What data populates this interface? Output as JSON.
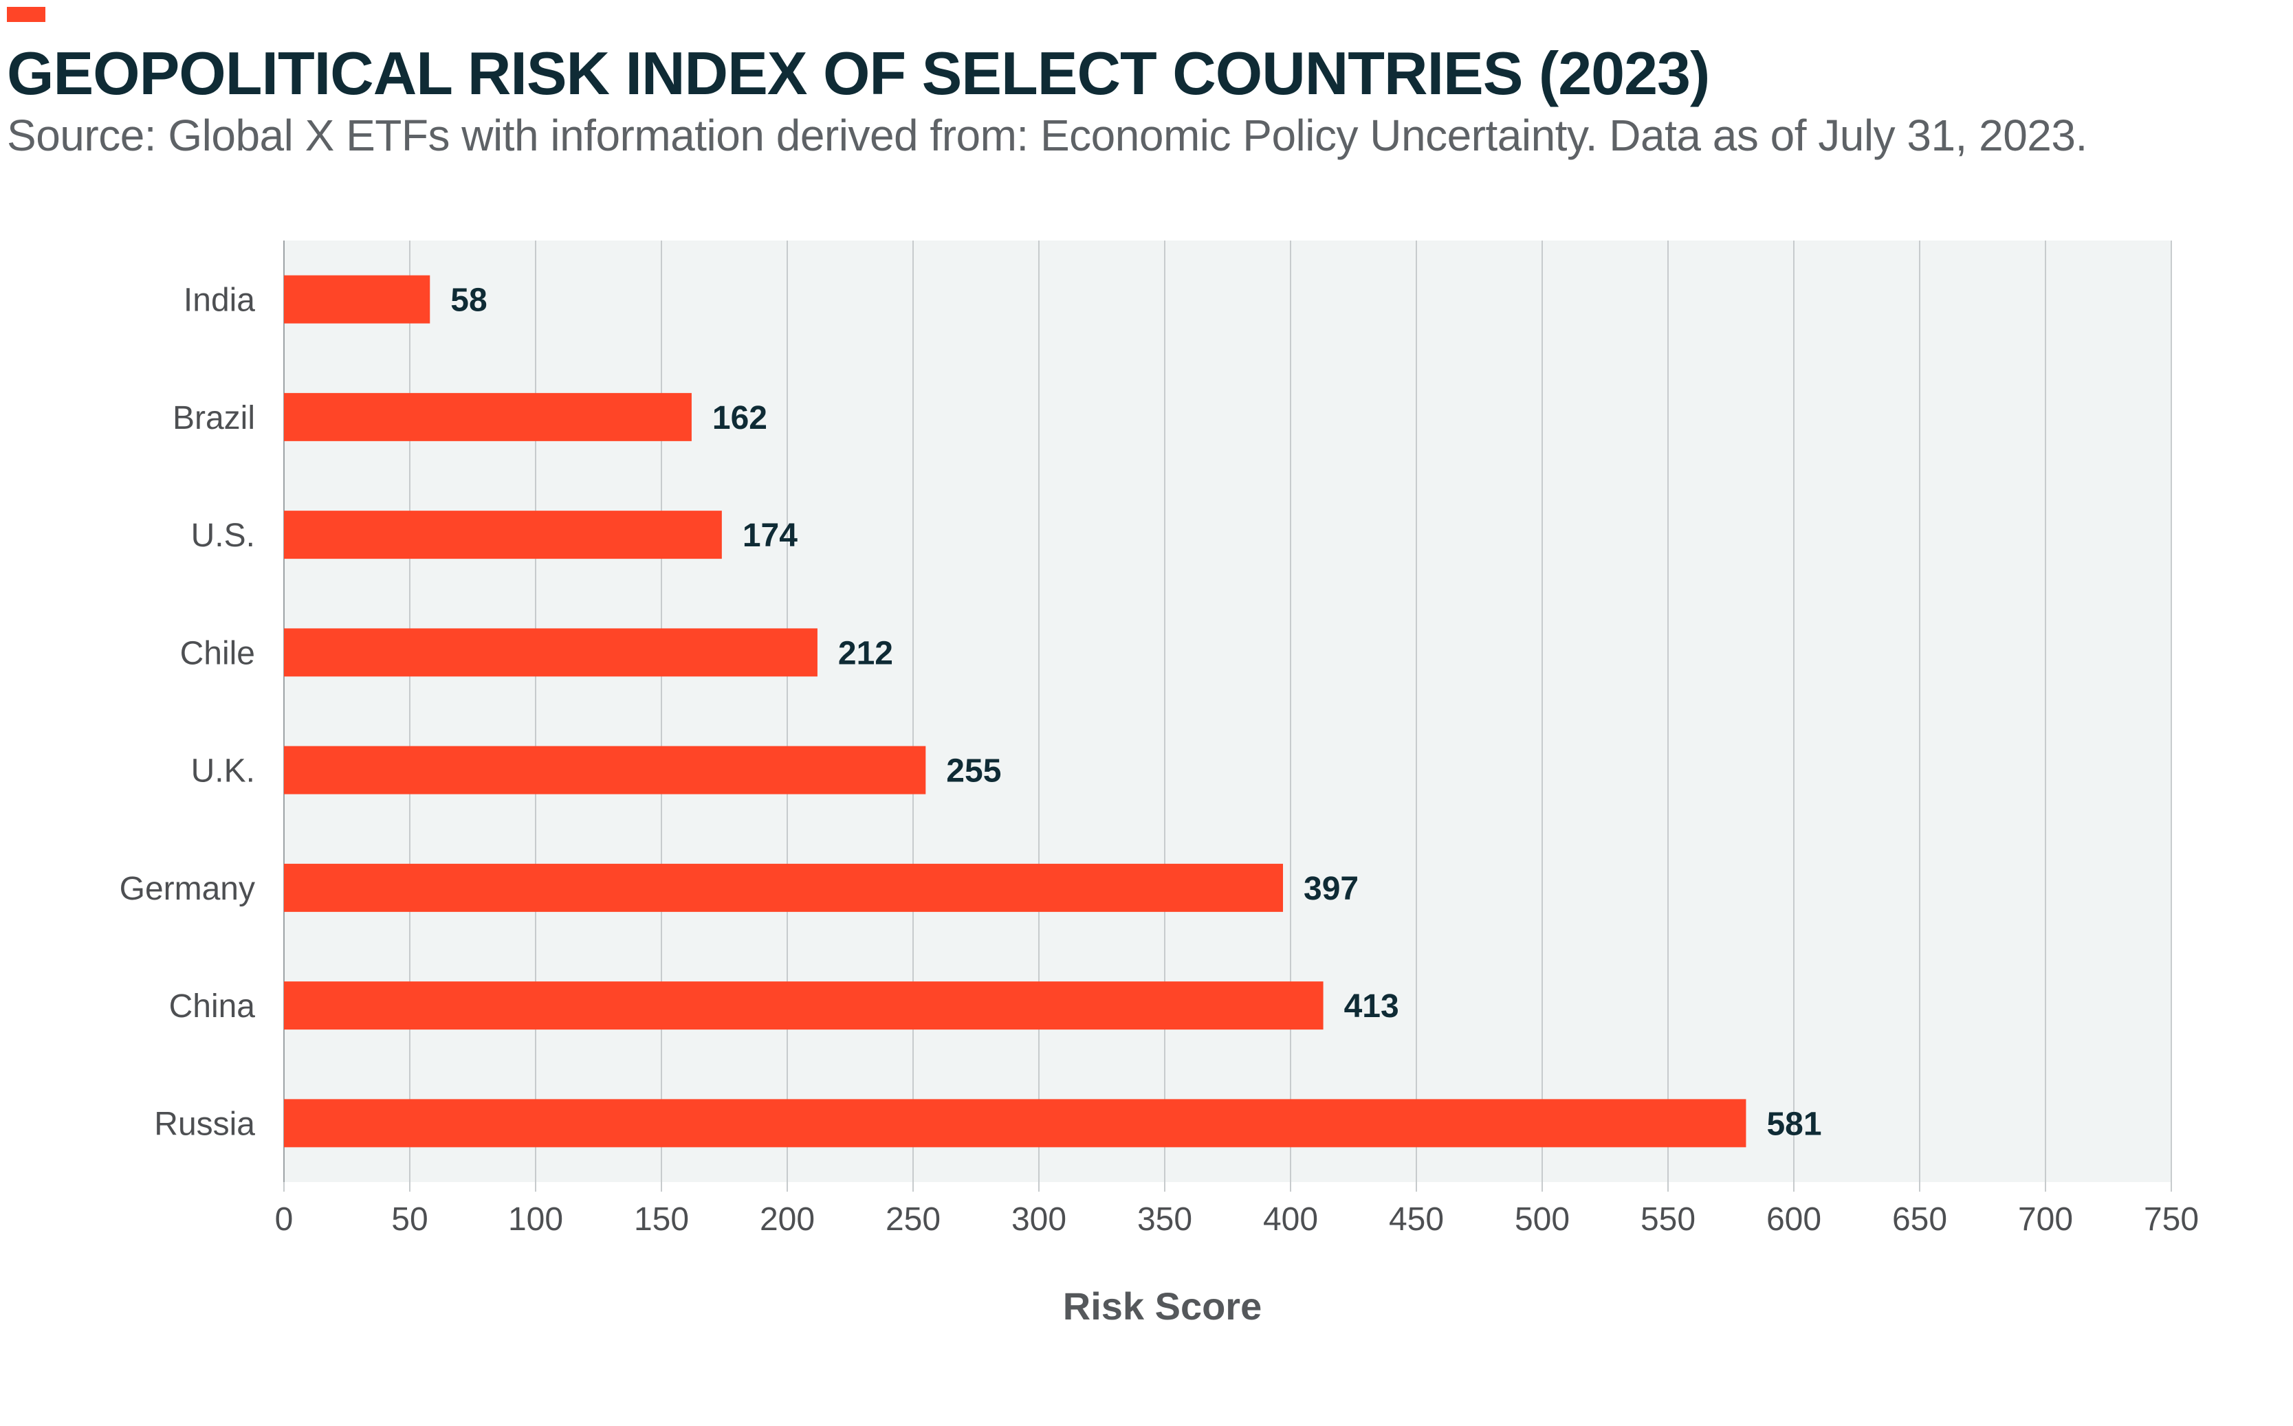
{
  "header": {
    "title": "GEOPOLITICAL RISK INDEX OF SELECT COUNTRIES (2023)",
    "subtitle": "Source: Global X ETFs with information derived from: Economic Policy Uncertainty. Data as of July 31, 2023."
  },
  "colors": {
    "bar": "#ff4527",
    "plot_background": "#f1f4f4",
    "gridline": "#c7cbcd",
    "accent": "#ff4527"
  },
  "chart_data": {
    "type": "bar",
    "orientation": "horizontal",
    "title": "GEOPOLITICAL RISK INDEX OF SELECT COUNTRIES (2023)",
    "categories": [
      "India",
      "Brazil",
      "U.S.",
      "Chile",
      "U.K.",
      "Germany",
      "China",
      "Russia"
    ],
    "values": [
      58,
      162,
      174,
      212,
      255,
      397,
      413,
      581
    ],
    "xlabel": "Risk Score",
    "ylabel": "",
    "xlim": [
      0,
      750
    ],
    "xticks": [
      0,
      50,
      100,
      150,
      200,
      250,
      300,
      350,
      400,
      450,
      500,
      550,
      600,
      650,
      700,
      750
    ],
    "grid": true,
    "data_labels": true
  }
}
